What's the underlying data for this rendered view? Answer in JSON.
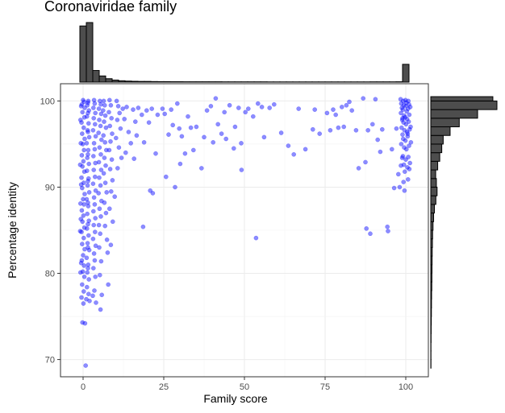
{
  "chart_data": {
    "type": "scatter",
    "title": "Coronaviridae family",
    "xlabel": "Family score",
    "ylabel": "Percentage identity",
    "xlim": [
      -7,
      107
    ],
    "ylim": [
      68,
      102
    ],
    "x_ticks": [
      0,
      25,
      50,
      75,
      100
    ],
    "y_ticks": [
      70,
      80,
      90,
      100
    ],
    "grid": true,
    "point_color": "#0000ff",
    "point_opacity": 0.45,
    "bar_color": "#4d4d4d",
    "x_marginal_histogram": {
      "bin_edges": [
        -1,
        1,
        3,
        5,
        7,
        9,
        11,
        13,
        15,
        17,
        19,
        21,
        23,
        25,
        27,
        29,
        31,
        33,
        35,
        37,
        39,
        41,
        43,
        45,
        47,
        49,
        51,
        53,
        55,
        57,
        59,
        61,
        63,
        65,
        67,
        69,
        71,
        73,
        75,
        77,
        79,
        81,
        83,
        85,
        87,
        89,
        91,
        93,
        95,
        97,
        99,
        101
      ],
      "counts": [
        820,
        870,
        170,
        90,
        50,
        30,
        20,
        15,
        12,
        10,
        10,
        8,
        7,
        7,
        6,
        6,
        5,
        5,
        5,
        5,
        5,
        5,
        4,
        4,
        4,
        4,
        4,
        4,
        4,
        3,
        3,
        3,
        3,
        3,
        3,
        3,
        3,
        3,
        3,
        3,
        3,
        3,
        3,
        3,
        3,
        4,
        4,
        4,
        4,
        5,
        260
      ]
    },
    "y_marginal_histogram": {
      "bin_edges": [
        69,
        70,
        71,
        72,
        73,
        74,
        75,
        76,
        77,
        78,
        79,
        80,
        81,
        82,
        83,
        84,
        85,
        86,
        87,
        88,
        89,
        90,
        91,
        92,
        93,
        94,
        95,
        96,
        97,
        98,
        99,
        100,
        100.5
      ],
      "counts": [
        2,
        2,
        2,
        3,
        4,
        5,
        6,
        7,
        8,
        10,
        11,
        12,
        13,
        14,
        16,
        18,
        22,
        28,
        36,
        50,
        62,
        55,
        48,
        68,
        88,
        108,
        122,
        190,
        280,
        460,
        650,
        610
      ]
    },
    "points": [
      [
        0,
        100.1
      ],
      [
        0.3,
        99.9
      ],
      [
        -0.4,
        99.6
      ],
      [
        0.5,
        99.2
      ],
      [
        -0.2,
        98.7
      ],
      [
        0.4,
        98.1
      ],
      [
        -0.5,
        97.5
      ],
      [
        0.2,
        96.9
      ],
      [
        -0.3,
        96.2
      ],
      [
        0.5,
        95.6
      ],
      [
        -0.1,
        95.0
      ],
      [
        0.3,
        94.3
      ],
      [
        -0.4,
        93.7
      ],
      [
        0.1,
        93.0
      ],
      [
        -0.2,
        92.4
      ],
      [
        0.4,
        91.8
      ],
      [
        -0.5,
        91.1
      ],
      [
        0.2,
        90.5
      ],
      [
        -0.3,
        89.9
      ],
      [
        0.5,
        89.2
      ],
      [
        0,
        88.6
      ],
      [
        0.3,
        88.0
      ],
      [
        -0.4,
        87.3
      ],
      [
        0.1,
        86.7
      ],
      [
        -0.2,
        86.0
      ],
      [
        0.4,
        85.3
      ],
      [
        -0.5,
        84.8
      ],
      [
        0.2,
        84.1
      ],
      [
        -0.3,
        83.4
      ],
      [
        0.5,
        82.8
      ],
      [
        0,
        82.1
      ],
      [
        -0.4,
        81.5
      ],
      [
        0.3,
        80.9
      ],
      [
        -0.1,
        80.2
      ],
      [
        0.4,
        79.6
      ],
      [
        -0.3,
        78.7
      ],
      [
        0.2,
        77.9
      ],
      [
        -0.5,
        77.2
      ],
      [
        0.1,
        76.5
      ],
      [
        -0.2,
        74.3
      ],
      [
        0.6,
        74.2
      ],
      [
        0.8,
        69.3
      ],
      [
        -0.8,
        80.1
      ],
      [
        -0.6,
        81.2
      ],
      [
        -0.9,
        84.9
      ],
      [
        -0.7,
        86.3
      ],
      [
        -0.8,
        88.1
      ],
      [
        -0.6,
        90.3
      ],
      [
        -0.9,
        92.6
      ],
      [
        -0.7,
        95.1
      ],
      [
        -0.8,
        97.8
      ],
      [
        -0.6,
        99.4
      ],
      [
        1.6,
        100.0
      ],
      [
        1.3,
        99.5
      ],
      [
        1.8,
        98.9
      ],
      [
        1.2,
        98.2
      ],
      [
        1.7,
        97.4
      ],
      [
        1.4,
        96.6
      ],
      [
        1.9,
        95.8
      ],
      [
        1.1,
        95.1
      ],
      [
        1.6,
        94.3
      ],
      [
        1.3,
        93.4
      ],
      [
        1.8,
        92.7
      ],
      [
        1.2,
        91.9
      ],
      [
        1.7,
        91.0
      ],
      [
        1.4,
        90.2
      ],
      [
        1.9,
        89.4
      ],
      [
        1.1,
        88.6
      ],
      [
        1.6,
        87.8
      ],
      [
        1.3,
        86.9
      ],
      [
        1.8,
        86.1
      ],
      [
        1.2,
        85.2
      ],
      [
        1.7,
        84.4
      ],
      [
        1.4,
        83.5
      ],
      [
        1.9,
        82.7
      ],
      [
        1.1,
        81.8
      ],
      [
        1.6,
        81.0
      ],
      [
        1.3,
        80.1
      ],
      [
        1.8,
        79.3
      ],
      [
        1.2,
        78.4
      ],
      [
        1.7,
        77.6
      ],
      [
        1.0,
        77.0
      ],
      [
        2.0,
        76.8
      ],
      [
        1.5,
        80.6
      ],
      [
        1.5,
        83.0
      ],
      [
        1.5,
        85.7
      ],
      [
        1.5,
        88.2
      ],
      [
        1.5,
        90.7
      ],
      [
        1.5,
        93.8
      ],
      [
        1.5,
        96.4
      ],
      [
        1.5,
        98.6
      ],
      [
        1.5,
        99.8
      ],
      [
        3.4,
        100.1
      ],
      [
        3.6,
        99.7
      ],
      [
        3.2,
        99.2
      ],
      [
        3.8,
        98.6
      ],
      [
        3.3,
        98.0
      ],
      [
        3.7,
        97.3
      ],
      [
        3.1,
        96.6
      ],
      [
        3.9,
        95.9
      ],
      [
        3.4,
        95.1
      ],
      [
        3.6,
        94.4
      ],
      [
        3.2,
        93.6
      ],
      [
        3.8,
        92.8
      ],
      [
        3.3,
        92.0
      ],
      [
        3.7,
        91.2
      ],
      [
        3.1,
        90.4
      ],
      [
        3.9,
        89.6
      ],
      [
        3.4,
        88.8
      ],
      [
        3.6,
        88.0
      ],
      [
        3.2,
        87.2
      ],
      [
        3.8,
        86.4
      ],
      [
        3.3,
        85.6
      ],
      [
        3.7,
        84.8
      ],
      [
        3.1,
        84.0
      ],
      [
        3.9,
        83.2
      ],
      [
        3.4,
        82.3
      ],
      [
        3.6,
        81.5
      ],
      [
        3.2,
        80.6
      ],
      [
        3.8,
        79.6
      ],
      [
        3.5,
        78.0
      ],
      [
        3.0,
        77.4
      ],
      [
        4.0,
        76.6
      ],
      [
        5.2,
        100.0
      ],
      [
        5.5,
        99.6
      ],
      [
        4.9,
        99.1
      ],
      [
        5.6,
        98.5
      ],
      [
        5.0,
        97.8
      ],
      [
        5.4,
        97.1
      ],
      [
        4.8,
        96.3
      ],
      [
        5.7,
        95.5
      ],
      [
        5.1,
        94.6
      ],
      [
        5.5,
        93.8
      ],
      [
        4.9,
        92.9
      ],
      [
        5.6,
        92.0
      ],
      [
        5.0,
        91.1
      ],
      [
        5.4,
        90.2
      ],
      [
        4.8,
        89.3
      ],
      [
        5.7,
        88.4
      ],
      [
        5.1,
        87.5
      ],
      [
        5.5,
        86.6
      ],
      [
        4.9,
        85.6
      ],
      [
        5.3,
        84.6
      ],
      [
        5.0,
        83.0
      ],
      [
        5.6,
        81.4
      ],
      [
        5.2,
        79.8
      ],
      [
        5.8,
        77.5
      ],
      [
        5.4,
        75.8
      ],
      [
        6.4,
        100.0
      ],
      [
        6.7,
        99.5
      ],
      [
        6.2,
        98.9
      ],
      [
        6.9,
        98.3
      ],
      [
        6.5,
        97.6
      ],
      [
        7.1,
        96.9
      ],
      [
        6.3,
        96.0
      ],
      [
        6.8,
        95.2
      ],
      [
        7.2,
        94.3
      ],
      [
        6.6,
        93.4
      ],
      [
        7.0,
        92.5
      ],
      [
        6.4,
        91.6
      ],
      [
        6.9,
        90.5
      ],
      [
        7.3,
        89.4
      ],
      [
        6.6,
        88.2
      ],
      [
        7.1,
        87.0
      ],
      [
        6.8,
        85.5
      ],
      [
        7.4,
        83.9
      ],
      [
        7.6,
        82.4
      ],
      [
        8.2,
        100.1
      ],
      [
        8.6,
        99.5
      ],
      [
        8.0,
        98.7
      ],
      [
        8.8,
        98.0
      ],
      [
        8.3,
        97.1
      ],
      [
        9.0,
        96.2
      ],
      [
        8.5,
        95.3
      ],
      [
        8.1,
        94.3
      ],
      [
        8.9,
        93.2
      ],
      [
        8.4,
        92.1
      ],
      [
        9.1,
        90.8
      ],
      [
        8.7,
        89.5
      ],
      [
        8.2,
        87.5
      ],
      [
        9.2,
        86.0
      ],
      [
        7.8,
        78.7
      ],
      [
        8.6,
        83.3
      ],
      [
        9.8,
        88.9
      ],
      [
        10.4,
        100.0
      ],
      [
        10.9,
        99.4
      ],
      [
        11.3,
        98.6
      ],
      [
        10.6,
        97.8
      ],
      [
        11.6,
        96.8
      ],
      [
        10.2,
        95.7
      ],
      [
        11.1,
        94.6
      ],
      [
        11.9,
        93.4
      ],
      [
        10.7,
        92.2
      ],
      [
        12.3,
        99.1
      ],
      [
        12.8,
        97.9
      ],
      [
        13.5,
        99.3
      ],
      [
        14.1,
        96.4
      ],
      [
        14.8,
        95.1
      ],
      [
        13.2,
        94.0
      ],
      [
        15.5,
        99.0
      ],
      [
        16.2,
        97.6
      ],
      [
        15.8,
        93.3
      ],
      [
        17.1,
        99.2
      ],
      [
        16.6,
        96.0
      ],
      [
        18.2,
        98.4
      ],
      [
        18.9,
        95.2
      ],
      [
        19.7,
        98.9
      ],
      [
        20.4,
        97.5
      ],
      [
        21.3,
        99.1
      ],
      [
        20.8,
        89.6
      ],
      [
        21.6,
        89.3
      ],
      [
        18.6,
        85.4
      ],
      [
        22.5,
        93.9
      ],
      [
        23.1,
        98.4
      ],
      [
        24.6,
        99.1
      ],
      [
        25.3,
        98.5
      ],
      [
        25.7,
        91.2
      ],
      [
        26.5,
        96.1
      ],
      [
        27.3,
        99.0
      ],
      [
        27.8,
        97.2
      ],
      [
        28.5,
        90.0
      ],
      [
        29.2,
        99.7
      ],
      [
        29.8,
        96.8
      ],
      [
        30.6,
        95.9
      ],
      [
        30.1,
        92.7
      ],
      [
        31.6,
        93.9
      ],
      [
        32.5,
        98.2
      ],
      [
        33.4,
        96.9
      ],
      [
        34.2,
        94.3
      ],
      [
        35.1,
        97.0
      ],
      [
        36.7,
        92.2
      ],
      [
        37.5,
        95.8
      ],
      [
        38.4,
        98.9
      ],
      [
        39.6,
        99.4
      ],
      [
        40.3,
        95.2
      ],
      [
        41.1,
        100.3
      ],
      [
        41.8,
        97.3
      ],
      [
        42.9,
        96.2
      ],
      [
        43.8,
        98.7
      ],
      [
        44.3,
        95.6
      ],
      [
        45.4,
        99.5
      ],
      [
        46.7,
        94.5
      ],
      [
        47.1,
        97.0
      ],
      [
        48.2,
        99.2
      ],
      [
        49.1,
        92.0
      ],
      [
        49.0,
        95.1
      ],
      [
        50.3,
        98.7
      ],
      [
        51.2,
        99.1
      ],
      [
        52.7,
        98.2
      ],
      [
        53.6,
        84.1
      ],
      [
        54.2,
        99.7
      ],
      [
        55.4,
        99.3
      ],
      [
        56.1,
        95.8
      ],
      [
        57.8,
        99.2
      ],
      [
        59.2,
        99.6
      ],
      [
        61.4,
        96.3
      ],
      [
        63.6,
        94.8
      ],
      [
        65.3,
        93.8
      ],
      [
        66.8,
        99.1
      ],
      [
        68.9,
        94.4
      ],
      [
        71.2,
        96.7
      ],
      [
        71.8,
        99.0
      ],
      [
        73.3,
        96.2
      ],
      [
        75.6,
        98.6
      ],
      [
        76.6,
        96.6
      ],
      [
        77.5,
        99.0
      ],
      [
        78.3,
        98.4
      ],
      [
        79.1,
        96.9
      ],
      [
        80.2,
        99.3
      ],
      [
        80.8,
        97.0
      ],
      [
        81.6,
        99.5
      ],
      [
        82.5,
        99.9
      ],
      [
        83.3,
        98.9
      ],
      [
        84.6,
        96.6
      ],
      [
        85.4,
        92.2
      ],
      [
        86.8,
        100.3
      ],
      [
        87.5,
        92.9
      ],
      [
        87.8,
        85.2
      ],
      [
        88.3,
        96.6
      ],
      [
        89.0,
        84.6
      ],
      [
        89.7,
        97.3
      ],
      [
        90.6,
        100.2
      ],
      [
        91.3,
        95.5
      ],
      [
        92.1,
        94.1
      ],
      [
        92.7,
        96.7
      ],
      [
        94.3,
        85.4
      ],
      [
        94.5,
        84.9
      ],
      [
        95.7,
        94.4
      ],
      [
        96.4,
        89.9
      ],
      [
        97.1,
        96.8
      ],
      [
        97.7,
        91.5
      ],
      [
        98.1,
        90.0
      ],
      [
        98.4,
        100.2
      ],
      [
        98.6,
        99.7
      ],
      [
        98.8,
        99.2
      ],
      [
        98.5,
        98.6
      ],
      [
        98.9,
        97.8
      ],
      [
        98.7,
        96.9
      ],
      [
        99.0,
        96.1
      ],
      [
        98.6,
        95.0
      ],
      [
        98.9,
        93.4
      ],
      [
        98.5,
        92.5
      ],
      [
        99.2,
        100.0
      ],
      [
        99.4,
        99.5
      ],
      [
        99.1,
        99.0
      ],
      [
        99.5,
        98.3
      ],
      [
        99.3,
        97.5
      ],
      [
        99.6,
        96.6
      ],
      [
        99.2,
        95.6
      ],
      [
        99.5,
        94.6
      ],
      [
        99.1,
        93.6
      ],
      [
        99.4,
        92.6
      ],
      [
        99.7,
        91.8
      ],
      [
        99.3,
        90.6
      ],
      [
        99.9,
        100.1
      ],
      [
        100.2,
        99.8
      ],
      [
        100.0,
        99.4
      ],
      [
        100.3,
        98.8
      ],
      [
        99.8,
        98.1
      ],
      [
        100.1,
        97.3
      ],
      [
        100.4,
        96.4
      ],
      [
        99.9,
        95.4
      ],
      [
        100.2,
        94.4
      ],
      [
        100.0,
        93.2
      ],
      [
        100.5,
        92.3
      ],
      [
        100.8,
        100.0
      ],
      [
        101.0,
        99.6
      ],
      [
        100.7,
        99.1
      ],
      [
        101.1,
        98.4
      ],
      [
        100.9,
        97.6
      ],
      [
        101.2,
        96.7
      ],
      [
        100.6,
        95.9
      ],
      [
        101.0,
        94.8
      ],
      [
        100.8,
        93.5
      ],
      [
        101.3,
        92.8
      ],
      [
        101.1,
        92.1
      ],
      [
        100.7,
        90.9
      ],
      [
        101.4,
        99.3
      ],
      [
        101.5,
        97.0
      ],
      [
        101.6,
        95.2
      ],
      [
        99.6,
        89.6
      ],
      [
        100.4,
        97.9
      ],
      [
        99.0,
        98.0
      ],
      [
        100.6,
        96.2
      ]
    ]
  }
}
